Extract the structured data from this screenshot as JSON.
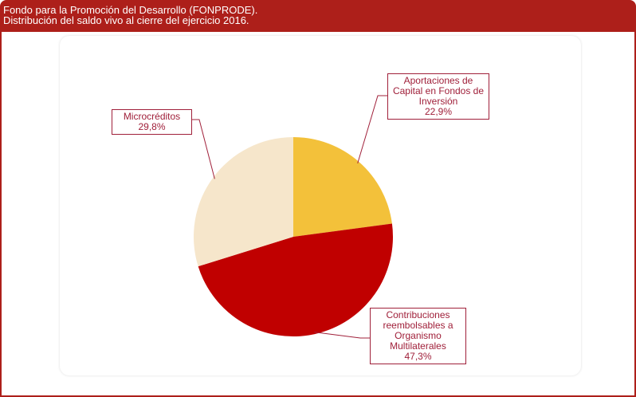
{
  "chart_data": {
    "type": "pie",
    "title": "Fondo para la Promoción del Desarrollo (FONPRODE).",
    "subtitle": "Distribución del saldo vivo al cierre del ejercicio 2016.",
    "categories": [
      "Aportaciones de Capital en Fondos de Inversión",
      "Contribuciones reembolsables a Organismo Multilaterales",
      "Microcréditos"
    ],
    "values": [
      22.9,
      47.3,
      29.8
    ],
    "value_labels": [
      "22,9%",
      "47,3%",
      "29,8%"
    ],
    "colors": [
      "#f3c13a",
      "#c00000",
      "#f6e6cb"
    ]
  }
}
